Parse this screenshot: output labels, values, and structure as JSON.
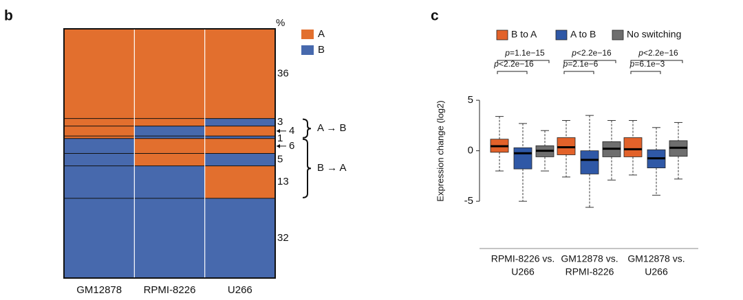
{
  "chart_data": [
    {
      "type": "mosaic",
      "panel": "b",
      "header": "%",
      "categories": [
        "GM12878",
        "RPMI-8226",
        "U266"
      ],
      "series": [
        {
          "name": "A",
          "color": "#e26f2e"
        },
        {
          "name": "B",
          "color": "#4769ad"
        }
      ],
      "rows": [
        {
          "value": 36,
          "states": [
            "A",
            "A",
            "A"
          ]
        },
        {
          "value": 3,
          "states": [
            "A",
            "A",
            "B"
          ]
        },
        {
          "value": 4,
          "states": [
            "A",
            "B",
            "A"
          ]
        },
        {
          "value": 1,
          "states": [
            "A",
            "B",
            "B"
          ]
        },
        {
          "value": 6,
          "states": [
            "B",
            "A",
            "A"
          ]
        },
        {
          "value": 5,
          "states": [
            "B",
            "A",
            "B"
          ]
        },
        {
          "value": 13,
          "states": [
            "B",
            "B",
            "A"
          ]
        },
        {
          "value": 32,
          "states": [
            "B",
            "B",
            "B"
          ]
        }
      ],
      "brackets": [
        {
          "label": "A → B",
          "from": "A"
        },
        {
          "label": "B → A",
          "from": "B"
        }
      ]
    },
    {
      "type": "box",
      "panel": "c",
      "ylabel": "Expression change (log2)",
      "p_symbol": "p",
      "categories": [
        [
          "RPMI-8226 vs.",
          "U266"
        ],
        [
          "GM12878 vs.",
          "RPMI-8226"
        ],
        [
          "GM12878 vs.",
          "U266"
        ]
      ],
      "series": [
        {
          "name": "B to A",
          "color": "#e2622a",
          "values": [
            {
              "min": -2.0,
              "q1": -0.15,
              "median": 0.45,
              "q3": 1.15,
              "max": 3.4
            },
            {
              "min": -2.6,
              "q1": -0.4,
              "median": 0.35,
              "q3": 1.3,
              "max": 3.0
            },
            {
              "min": -2.4,
              "q1": -0.6,
              "median": 0.15,
              "q3": 1.3,
              "max": 3.0
            }
          ]
        },
        {
          "name": "A to B",
          "color": "#2f58a6",
          "values": [
            {
              "min": -5.0,
              "q1": -1.8,
              "median": -0.25,
              "q3": 0.3,
              "max": 2.7
            },
            {
              "min": -5.6,
              "q1": -2.3,
              "median": -0.9,
              "q3": 0.0,
              "max": 3.5
            },
            {
              "min": -4.4,
              "q1": -1.7,
              "median": -0.75,
              "q3": 0.1,
              "max": 2.3
            }
          ]
        },
        {
          "name": "No switching",
          "color": "#6e6e6e",
          "values": [
            {
              "min": -2.0,
              "q1": -0.6,
              "median": 0.0,
              "q3": 0.5,
              "max": 2.0
            },
            {
              "min": -2.9,
              "q1": -0.6,
              "median": 0.2,
              "q3": 0.9,
              "max": 3.0
            },
            {
              "min": -2.8,
              "q1": -0.55,
              "median": 0.3,
              "q3": 1.0,
              "max": 2.8
            }
          ]
        }
      ],
      "p_values": [
        [
          "=1.1e−15",
          "<2.2e−16"
        ],
        [
          "<2.2e−16",
          "=2.1e−6"
        ],
        [
          "<2.2e−16",
          "=6.1e−3"
        ]
      ],
      "ylim": [
        -9,
        6.5
      ],
      "yticks": [
        -5,
        0,
        5
      ]
    }
  ]
}
